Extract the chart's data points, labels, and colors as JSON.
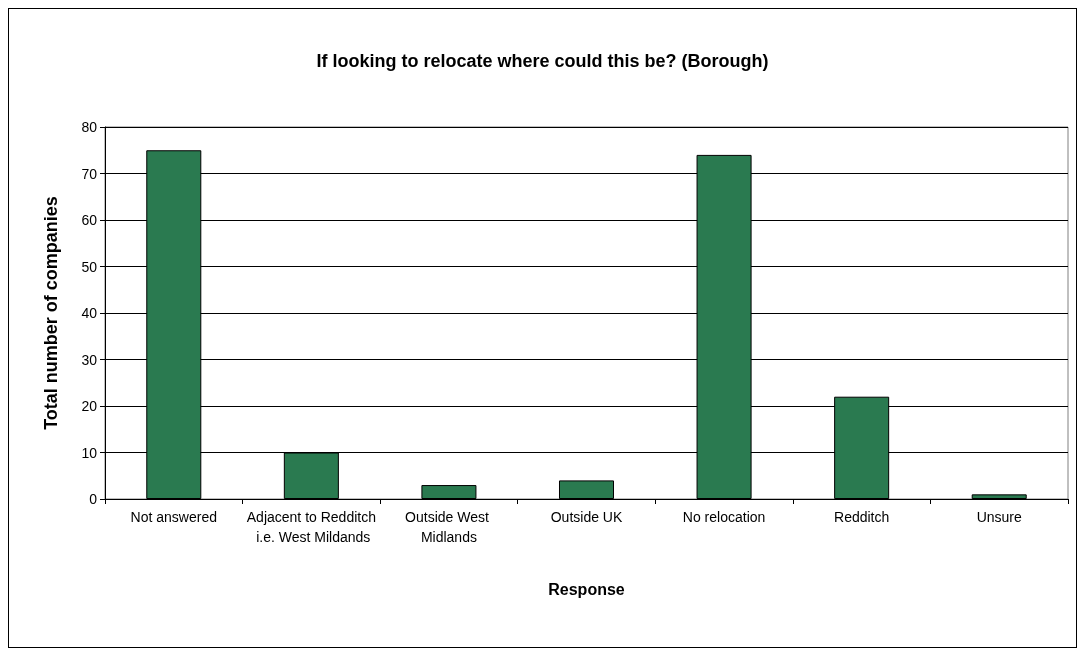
{
  "chart_data": {
    "type": "bar",
    "title": "If looking to relocate where could this be? (Borough)",
    "xlabel": "Response",
    "ylabel": "Total number of companies",
    "categories": [
      "Not answered",
      "Adjacent to Redditch i.e. West Mildands",
      "Outside West Midlands",
      "Outside UK",
      "No relocation",
      "Redditch",
      "Unsure"
    ],
    "values": [
      75,
      10,
      3,
      4,
      74,
      22,
      1
    ],
    "color": "#2a7a50",
    "ylim": [
      0,
      80
    ],
    "yticks": [
      0,
      10,
      20,
      30,
      40,
      50,
      60,
      70,
      80
    ],
    "grid": "y"
  }
}
